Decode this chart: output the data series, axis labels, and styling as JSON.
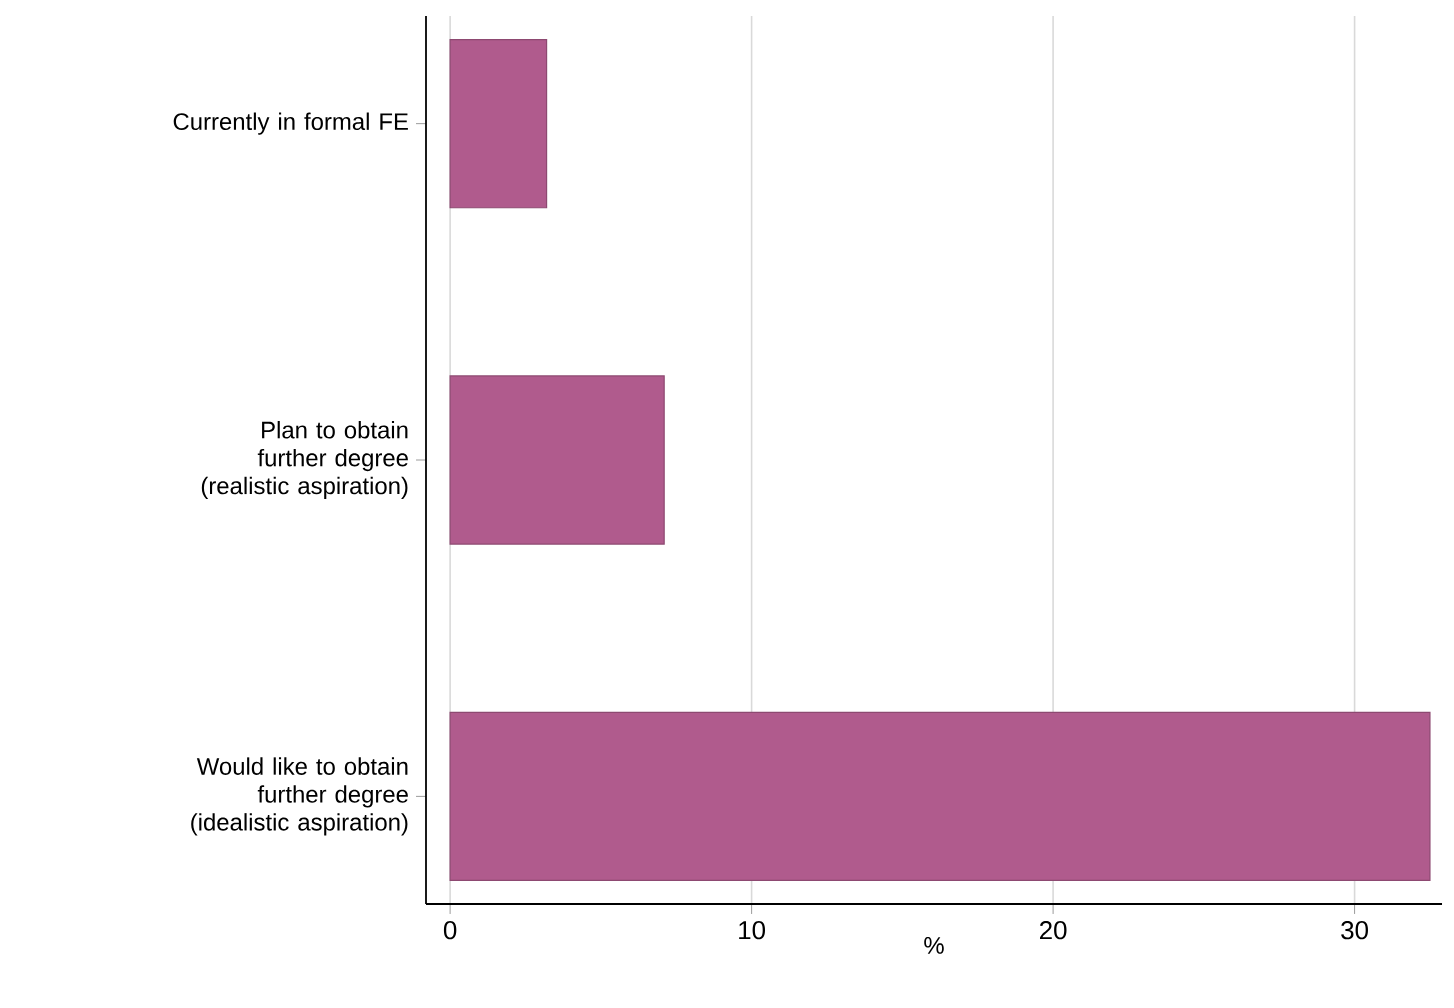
{
  "chart_data": {
    "type": "bar",
    "orientation": "horizontal",
    "categories": [
      "Currently in formal FE",
      "Plan to obtain further degree (realistic aspiration)",
      "Would like to obtain further degree (idealistic aspiration)"
    ],
    "values": [
      3.2,
      7.1,
      32.5
    ],
    "color": "#b05b8d",
    "xlabel": "%",
    "xlim": [
      -0.8,
      32.9
    ],
    "xticks": [
      0,
      10,
      20,
      30
    ],
    "grid": "x"
  }
}
